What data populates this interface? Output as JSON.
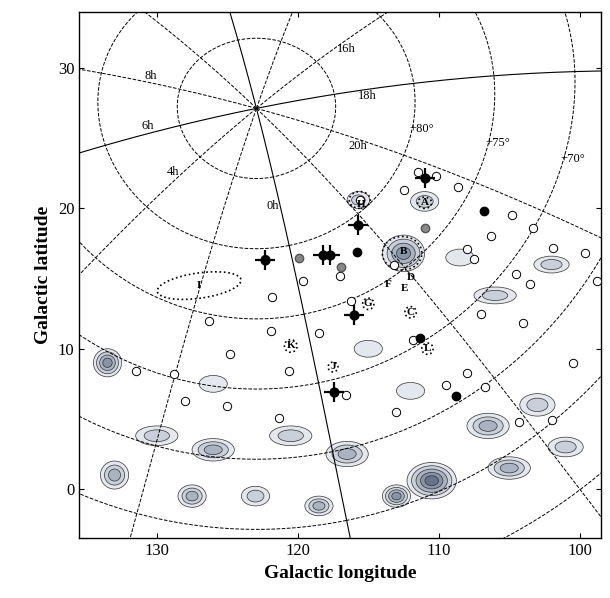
{
  "chart_data": {
    "type": "map",
    "xlabel": "Galactic longitude",
    "ylabel": "Galactic latitude",
    "xlim": [
      135.5,
      98.5
    ],
    "ylim": [
      -3.5,
      34
    ],
    "xticks": [
      130,
      120,
      110,
      100
    ],
    "yticks": [
      0,
      10,
      20,
      30
    ],
    "ra_lines": [
      {
        "ra_h": 0,
        "label": "0h",
        "line_style": "solid"
      },
      {
        "ra_h": 2,
        "label": null,
        "line_style": "dashed"
      },
      {
        "ra_h": 4,
        "label": "4h",
        "line_style": "dashed"
      },
      {
        "ra_h": 6,
        "label": "6h",
        "line_style": "solid"
      },
      {
        "ra_h": 8,
        "label": "8h",
        "line_style": "dashed"
      },
      {
        "ra_h": 10,
        "label": null,
        "line_style": "dashed"
      },
      {
        "ra_h": 12,
        "label": null,
        "line_style": "solid"
      },
      {
        "ra_h": 14,
        "label": null,
        "line_style": "dashed"
      },
      {
        "ra_h": 16,
        "label": "16h",
        "line_style": "dashed"
      },
      {
        "ra_h": 18,
        "label": "18h",
        "line_style": "solid"
      },
      {
        "ra_h": 20,
        "label": "20h",
        "line_style": "dashed"
      },
      {
        "ra_h": 22,
        "label": null,
        "line_style": "dashed"
      }
    ],
    "dec_circles": [
      {
        "dec": 85,
        "label": null
      },
      {
        "dec": 80,
        "label": "+80°"
      },
      {
        "dec": 75,
        "label": "+75°"
      },
      {
        "dec": 70,
        "label": "+70°"
      },
      {
        "dec": 65,
        "label": null
      },
      {
        "dec": 60,
        "label": null
      },
      {
        "dec": 55,
        "label": null
      }
    ],
    "clouds": [
      [
        112.5,
        16.8,
        3.0,
        2.6,
        4
      ],
      [
        111.0,
        20.5,
        2.0,
        1.4,
        2
      ],
      [
        115.7,
        20.6,
        1.6,
        1.2,
        2
      ],
      [
        133.5,
        9.0,
        2.0,
        2.0,
        4
      ],
      [
        126.0,
        2.8,
        3.0,
        1.6,
        3
      ],
      [
        116.5,
        2.5,
        3.0,
        1.8,
        3
      ],
      [
        110.5,
        0.6,
        3.5,
        2.6,
        5
      ],
      [
        113.0,
        -0.5,
        2.0,
        1.6,
        4
      ],
      [
        106.5,
        4.5,
        3.0,
        1.8,
        3
      ],
      [
        103.0,
        6.0,
        2.5,
        1.6,
        2
      ],
      [
        133.0,
        1.0,
        2.0,
        2.0,
        3
      ],
      [
        127.5,
        -0.5,
        2.0,
        1.6,
        3
      ],
      [
        123.0,
        -0.5,
        2.0,
        1.4,
        2
      ],
      [
        118.5,
        -1.2,
        2.0,
        1.4,
        3
      ],
      [
        120.5,
        3.8,
        3.0,
        1.4,
        2
      ],
      [
        130.0,
        3.8,
        3.0,
        1.4,
        2
      ],
      [
        105.0,
        1.5,
        3.0,
        1.6,
        3
      ],
      [
        101.0,
        3.0,
        2.5,
        1.4,
        2
      ],
      [
        106.0,
        13.8,
        3.0,
        1.2,
        2
      ],
      [
        102.0,
        16.0,
        2.5,
        1.2,
        2
      ],
      [
        108.5,
        16.5,
        2.0,
        1.2,
        1
      ],
      [
        115.0,
        10.0,
        2.0,
        1.2,
        1
      ],
      [
        126.0,
        7.5,
        2.0,
        1.2,
        1
      ],
      [
        112.0,
        7.0,
        2.0,
        1.2,
        1
      ]
    ],
    "dotted_regions": [
      [
        127.0,
        14.5,
        6.0,
        1.8,
        -8
      ],
      [
        112.6,
        16.8,
        2.8,
        2.4,
        0
      ],
      [
        115.6,
        20.6,
        1.5,
        1.2,
        0
      ],
      [
        112.0,
        12.6,
        0.8,
        0.8,
        0
      ],
      [
        115.0,
        13.2,
        0.8,
        0.8,
        0
      ],
      [
        120.5,
        10.2,
        0.9,
        0.9,
        0
      ],
      [
        110.8,
        10.0,
        0.8,
        0.8,
        0
      ],
      [
        117.5,
        8.7,
        0.7,
        0.7,
        0
      ],
      [
        111.0,
        20.4,
        1.0,
        0.8,
        0
      ]
    ],
    "markers": {
      "open": [
        [
          111.5,
          22.6
        ],
        [
          110.2,
          22.3
        ],
        [
          115.6,
          20.6
        ],
        [
          108.6,
          21.5
        ],
        [
          112.5,
          21.3
        ],
        [
          104.8,
          19.5
        ],
        [
          103.3,
          18.6
        ],
        [
          106.3,
          18.0
        ],
        [
          108.0,
          17.1
        ],
        [
          107.5,
          16.4
        ],
        [
          101.9,
          17.2
        ],
        [
          99.6,
          16.8
        ],
        [
          104.5,
          15.3
        ],
        [
          103.5,
          14.6
        ],
        [
          98.8,
          14.8
        ],
        [
          119.6,
          14.8
        ],
        [
          117.0,
          15.2
        ],
        [
          113.2,
          16.0
        ],
        [
          121.8,
          13.7
        ],
        [
          116.2,
          13.4
        ],
        [
          126.3,
          12.0
        ],
        [
          121.9,
          11.3
        ],
        [
          124.8,
          9.6
        ],
        [
          118.5,
          11.1
        ],
        [
          128.8,
          8.2
        ],
        [
          131.5,
          8.4
        ],
        [
          128.0,
          6.3
        ],
        [
          125.0,
          5.9
        ],
        [
          121.3,
          5.1
        ],
        [
          116.6,
          6.7
        ],
        [
          113.0,
          5.5
        ],
        [
          109.5,
          7.4
        ],
        [
          106.7,
          7.3
        ],
        [
          104.3,
          4.8
        ],
        [
          102.0,
          4.9
        ],
        [
          108.0,
          8.3
        ],
        [
          100.5,
          9.0
        ],
        [
          107.0,
          12.5
        ],
        [
          104.0,
          11.8
        ],
        [
          120.6,
          8.4
        ],
        [
          111.8,
          10.6
        ]
      ],
      "filled": [
        [
          106.8,
          19.8
        ],
        [
          115.8,
          16.9
        ],
        [
          111.3,
          10.8
        ],
        [
          108.8,
          6.6
        ]
      ],
      "grey": [
        [
          119.9,
          16.5
        ],
        [
          116.9,
          15.8
        ],
        [
          111.0,
          18.6
        ],
        [
          122.3,
          16.4
        ]
      ],
      "cross": [
        [
          111.0,
          22.2
        ],
        [
          115.7,
          18.8
        ],
        [
          122.3,
          16.3
        ],
        [
          118.2,
          16.7
        ],
        [
          117.7,
          16.7
        ],
        [
          116.0,
          12.4
        ],
        [
          117.4,
          6.9
        ]
      ]
    },
    "region_labels": [
      {
        "text": "A",
        "l": 111.0,
        "b": 20.4
      },
      {
        "text": "B",
        "l": 112.5,
        "b": 16.9
      },
      {
        "text": "C",
        "l": 112.0,
        "b": 12.6
      },
      {
        "text": "D",
        "l": 112.0,
        "b": 15.1
      },
      {
        "text": "E",
        "l": 112.4,
        "b": 14.3
      },
      {
        "text": "F",
        "l": 113.6,
        "b": 14.6
      },
      {
        "text": "G",
        "l": 115.0,
        "b": 13.2
      },
      {
        "text": "H",
        "l": 115.5,
        "b": 20.3
      },
      {
        "text": "I",
        "l": 127.0,
        "b": 14.5
      },
      {
        "text": "J",
        "l": 117.5,
        "b": 8.7
      },
      {
        "text": "K",
        "l": 120.5,
        "b": 10.2
      },
      {
        "text": "L",
        "l": 110.8,
        "b": 10.0
      }
    ]
  }
}
